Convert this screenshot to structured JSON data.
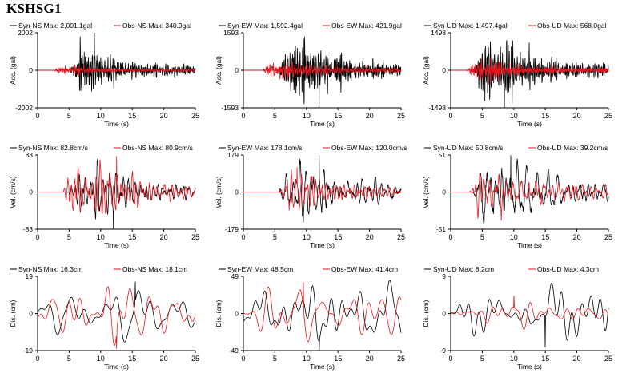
{
  "title": "KSHSG1",
  "colors": {
    "syn": "#000000",
    "obs": "#e8141e",
    "axis": "#000000"
  },
  "chart_data": [
    {
      "type": "line",
      "row": 0,
      "col": 0,
      "xlim": [
        0,
        25
      ],
      "ylim": [
        -2002,
        2002
      ],
      "xticks": [
        "0",
        "5",
        "10",
        "15",
        "20",
        "25"
      ],
      "yticks": [
        "2002",
        "0",
        "-2002"
      ],
      "xlabel": "Time (s)",
      "ylabel": "Acc. (gal)",
      "kind": "acc",
      "comp": "NS",
      "series": [
        {
          "name": "Syn-NS",
          "max_label": "Max: 2,001.1gal",
          "peak": 2001.1,
          "onset": 5.2,
          "peak_time": 9.0
        },
        {
          "name": "Obs-NS",
          "max_label": "Max: 340.9gal",
          "peak": 340.9,
          "onset": 2.5,
          "peak_time": 6.5
        }
      ]
    },
    {
      "type": "line",
      "row": 0,
      "col": 1,
      "xlim": [
        0,
        25
      ],
      "ylim": [
        -1593,
        1593
      ],
      "xticks": [
        "0",
        "5",
        "10",
        "15",
        "20",
        "25"
      ],
      "yticks": [
        "1593",
        "0",
        "-1593"
      ],
      "xlabel": "Time (s)",
      "ylabel": "Acc. (gal)",
      "kind": "acc",
      "comp": "EW",
      "series": [
        {
          "name": "Syn-EW",
          "max_label": "Max: 1,592.4gal",
          "peak": 1592.4,
          "onset": 5.5,
          "peak_time": 12.0
        },
        {
          "name": "Obs-EW",
          "max_label": "Max: 421.9gal",
          "peak": 421.9,
          "onset": 3.0,
          "peak_time": 7.0
        }
      ]
    },
    {
      "type": "line",
      "row": 0,
      "col": 2,
      "xlim": [
        0,
        25
      ],
      "ylim": [
        -1498,
        1498
      ],
      "xticks": [
        "0",
        "5",
        "10",
        "15",
        "20",
        "25"
      ],
      "yticks": [
        "1498",
        "0",
        "-1498"
      ],
      "xlabel": "Time (s)",
      "ylabel": "Acc. (gal)",
      "kind": "acc",
      "comp": "UD",
      "series": [
        {
          "name": "Syn-UD",
          "max_label": "Max: 1,497.4gal",
          "peak": 1497.4,
          "onset": 3.5,
          "peak_time": 8.5
        },
        {
          "name": "Obs-UD",
          "max_label": "Max: 568.0gal",
          "peak": 568.0,
          "onset": 2.5,
          "peak_time": 6.0
        }
      ]
    },
    {
      "type": "line",
      "row": 1,
      "col": 0,
      "xlim": [
        0,
        25
      ],
      "ylim": [
        -83,
        83
      ],
      "xticks": [
        "0",
        "5",
        "10",
        "15",
        "20",
        "25"
      ],
      "yticks": [
        "83",
        "0",
        "-83"
      ],
      "xlabel": "Time (s)",
      "ylabel": "Vel. (cm/s)",
      "kind": "vel",
      "comp": "NS",
      "series": [
        {
          "name": "Syn-NS",
          "max_label": "Max: 82.8cm/s",
          "peak": 82.8,
          "onset": 4.8,
          "peak_time": 12.0
        },
        {
          "name": "Obs-NS",
          "max_label": "Max: 80.9cm/s",
          "peak": 80.9,
          "onset": 4.0,
          "peak_time": 12.5
        }
      ]
    },
    {
      "type": "line",
      "row": 1,
      "col": 1,
      "xlim": [
        0,
        25
      ],
      "ylim": [
        -179,
        179
      ],
      "xticks": [
        "0",
        "5",
        "10",
        "15",
        "20",
        "25"
      ],
      "yticks": [
        "179",
        "0",
        "-179"
      ],
      "xlabel": "Time (s)",
      "ylabel": "Vel. (cm/s)",
      "kind": "vel",
      "comp": "EW",
      "series": [
        {
          "name": "Syn-EW",
          "max_label": "Max: 178.1cm/s",
          "peak": 178.1,
          "onset": 5.5,
          "peak_time": 12.0
        },
        {
          "name": "Obs-EW",
          "max_label": "Max: 120.0cm/s",
          "peak": 120.0,
          "onset": 5.5,
          "peak_time": 8.5
        }
      ]
    },
    {
      "type": "line",
      "row": 1,
      "col": 2,
      "xlim": [
        0,
        25
      ],
      "ylim": [
        -51,
        51
      ],
      "xticks": [
        "0",
        "5",
        "10",
        "15",
        "20",
        "25"
      ],
      "yticks": [
        "51",
        "0",
        "-51"
      ],
      "xlabel": "Time (s)",
      "ylabel": "Vel. (cm/s)",
      "kind": "vel",
      "comp": "UD",
      "series": [
        {
          "name": "Syn-UD",
          "max_label": "Max: 50.8cm/s",
          "peak": 50.8,
          "onset": 3.5,
          "peak_time": 9.5
        },
        {
          "name": "Obs-UD",
          "max_label": "Max: 39.2cm/s",
          "peak": 39.2,
          "onset": 3.0,
          "peak_time": 8.0
        }
      ]
    },
    {
      "type": "line",
      "row": 2,
      "col": 0,
      "xlim": [
        0,
        25
      ],
      "ylim": [
        -19,
        19
      ],
      "xticks": [
        "0",
        "5",
        "10",
        "15",
        "20",
        "25"
      ],
      "yticks": [
        "19",
        "0",
        "-19"
      ],
      "xlabel": "Time (s)",
      "ylabel": "Dis. (cm)",
      "kind": "dis",
      "comp": "NS",
      "series": [
        {
          "name": "Syn-NS",
          "max_label": "Max: 16.3cm",
          "peak": 16.3,
          "onset": 0.5,
          "peak_time": 15.5
        },
        {
          "name": "Obs-NS",
          "max_label": "Max: 18.1cm",
          "peak": 18.1,
          "onset": 0.5,
          "peak_time": 12.5
        }
      ]
    },
    {
      "type": "line",
      "row": 2,
      "col": 1,
      "xlim": [
        0,
        25
      ],
      "ylim": [
        -49,
        49
      ],
      "xticks": [
        "0",
        "5",
        "10",
        "15",
        "20",
        "25"
      ],
      "yticks": [
        "49",
        "0",
        "-49"
      ],
      "xlabel": "Time (s)",
      "ylabel": "Dis. (cm)",
      "kind": "dis",
      "comp": "EW",
      "series": [
        {
          "name": "Syn-EW",
          "max_label": "Max: 48.5cm",
          "peak": 48.5,
          "onset": 0.5,
          "peak_time": 12.0
        },
        {
          "name": "Obs-EW",
          "max_label": "Max: 41.4cm",
          "peak": 41.4,
          "onset": 1.0,
          "peak_time": 9.5
        }
      ]
    },
    {
      "type": "line",
      "row": 2,
      "col": 2,
      "xlim": [
        0,
        25
      ],
      "ylim": [
        -9,
        9
      ],
      "xticks": [
        "0",
        "5",
        "10",
        "15",
        "20",
        "25"
      ],
      "yticks": [
        "9",
        "0",
        "-9"
      ],
      "xlabel": "Time (s)",
      "ylabel": "Dis. (cm)",
      "kind": "dis",
      "comp": "UD",
      "series": [
        {
          "name": "Syn-UD",
          "max_label": "Max: 8.2cm",
          "peak": 8.2,
          "onset": 1.5,
          "peak_time": 15.0
        },
        {
          "name": "Obs-UD",
          "max_label": "Max: 4.3cm",
          "peak": 4.3,
          "onset": 1.5,
          "peak_time": 10.0
        }
      ]
    }
  ]
}
